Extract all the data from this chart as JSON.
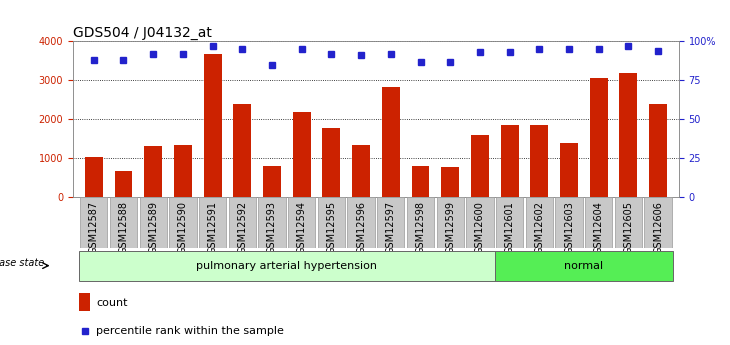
{
  "title": "GDS504 / J04132_at",
  "categories": [
    "GSM12587",
    "GSM12588",
    "GSM12589",
    "GSM12590",
    "GSM12591",
    "GSM12592",
    "GSM12593",
    "GSM12594",
    "GSM12595",
    "GSM12596",
    "GSM12597",
    "GSM12598",
    "GSM12599",
    "GSM12600",
    "GSM12601",
    "GSM12602",
    "GSM12603",
    "GSM12604",
    "GSM12605",
    "GSM12606"
  ],
  "bar_values": [
    1020,
    650,
    1310,
    1340,
    3680,
    2380,
    800,
    2180,
    1780,
    1340,
    2820,
    800,
    770,
    1590,
    1840,
    1840,
    1380,
    3060,
    3190,
    2390
  ],
  "percentile_values": [
    88,
    88,
    92,
    92,
    97,
    95,
    85,
    95,
    92,
    91,
    92,
    87,
    87,
    93,
    93,
    95,
    95,
    95,
    97,
    94
  ],
  "bar_color": "#cc2200",
  "percentile_color": "#2222cc",
  "ylim_left": [
    0,
    4000
  ],
  "ylim_right": [
    0,
    100
  ],
  "yticks_left": [
    0,
    1000,
    2000,
    3000,
    4000
  ],
  "yticks_right": [
    0,
    25,
    50,
    75,
    100
  ],
  "ytick_labels_right": [
    "0",
    "25",
    "50",
    "75",
    "100%"
  ],
  "group1_count": 14,
  "group2_count": 6,
  "group1_label": "pulmonary arterial hypertension",
  "group2_label": "normal",
  "group1_color": "#ccffcc",
  "group2_color": "#55ee55",
  "disease_state_label": "disease state",
  "legend_count_label": "count",
  "legend_pct_label": "percentile rank within the sample",
  "title_fontsize": 10,
  "tick_fontsize": 7,
  "annotation_fontsize": 8,
  "xlabel_bg_color": "#c8c8c8",
  "xlabel_border_color": "#999999"
}
